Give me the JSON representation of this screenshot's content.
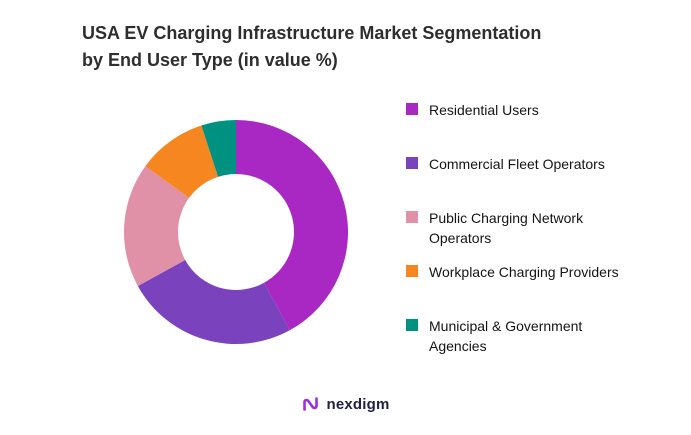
{
  "title": {
    "line1": "USA EV Charging Infrastructure Market Segmentation",
    "line2": "by End User Type (in value %)"
  },
  "chart_data": {
    "type": "pie",
    "subtype": "donut",
    "title": "USA EV Charging Infrastructure Market Segmentation by End User Type (in value %)",
    "unit": "value %",
    "legend_position": "right",
    "start_angle_deg": 0,
    "direction": "clockwise",
    "inner_radius_ratio": 0.52,
    "segments": [
      {
        "label": "Residential Users",
        "value": 42,
        "color": "#A928C4"
      },
      {
        "label": "Commercial Fleet Operators",
        "value": 25,
        "color": "#7B42BD"
      },
      {
        "label": "Public Charging Network Operators",
        "value": 18,
        "color": "#E091A8"
      },
      {
        "label": "Workplace Charging Providers",
        "value": 10,
        "color": "#F6861F"
      },
      {
        "label": "Municipal & Government Agencies",
        "value": 5,
        "color": "#009180"
      }
    ]
  },
  "footer": {
    "brand": "nexdigm",
    "brand_color": "#9B30D9"
  }
}
